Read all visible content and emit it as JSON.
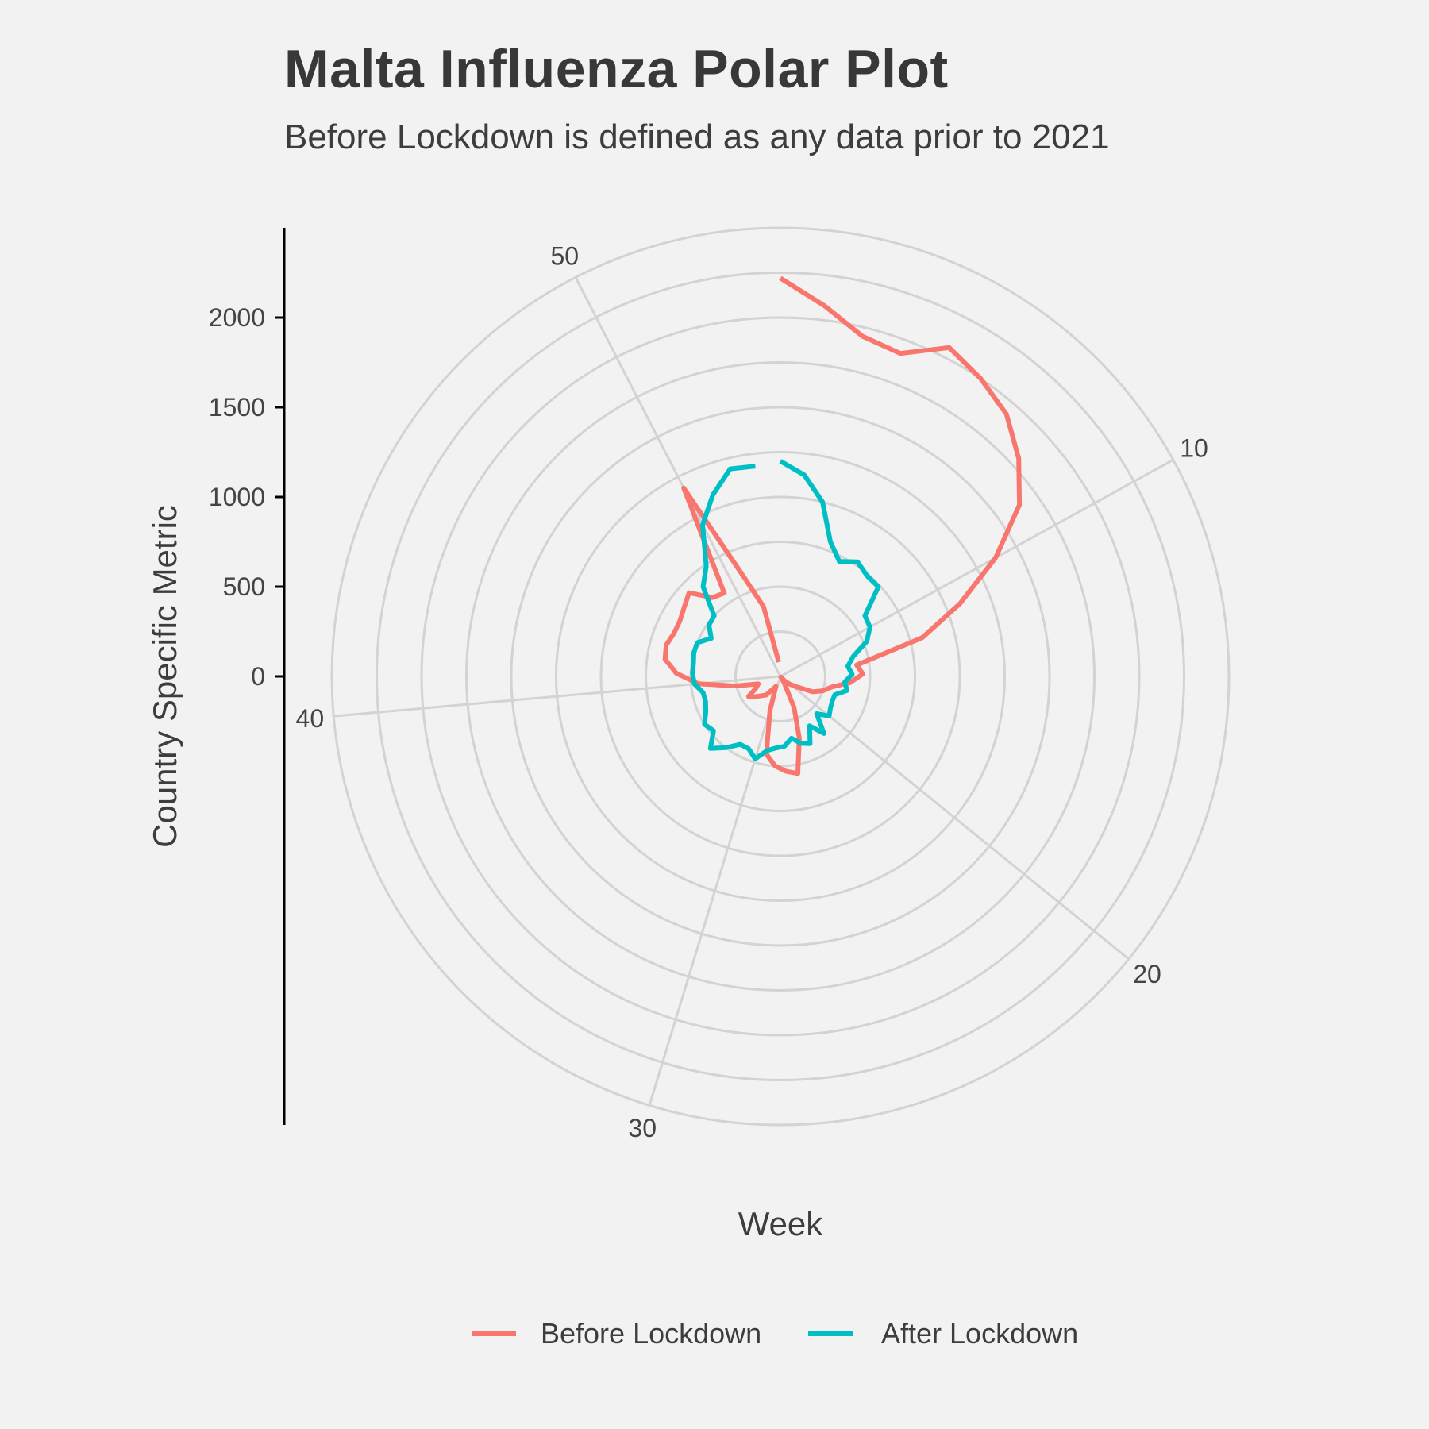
{
  "chart_data": {
    "type": "line",
    "coord": "polar",
    "title": "Malta Influenza Polar Plot",
    "subtitle": "Before Lockdown is defined as any data prior to 2021",
    "xlabel": "Week",
    "ylabel": "Country Specific Metric",
    "x_range": [
      1,
      53
    ],
    "ylim": [
      0,
      2500
    ],
    "x_ticks": [
      10,
      20,
      30,
      40,
      50
    ],
    "y_ticks": [
      0,
      500,
      1000,
      1500,
      2000
    ],
    "grid": true,
    "legend_position": "bottom",
    "series": [
      {
        "name": "Before Lockdown",
        "color": "#F8766D",
        "x": [
          1,
          2,
          3,
          4,
          5,
          6,
          7,
          8,
          9,
          10,
          11,
          12,
          13,
          14,
          15,
          16,
          17,
          18,
          19,
          20,
          21,
          22,
          23,
          24,
          25,
          26,
          27,
          28,
          29,
          30,
          31,
          32,
          33,
          34,
          35,
          36,
          37,
          38,
          39,
          40,
          41,
          42,
          43,
          44,
          45,
          46,
          47,
          48,
          49,
          50,
          51,
          52,
          53
        ],
        "y": [
          2220,
          2080,
          1950,
          1920,
          2060,
          2000,
          1930,
          1800,
          1640,
          1370,
          1080,
          820,
          430,
          460,
          390,
          290,
          250,
          200,
          110,
          70,
          40,
          5,
          40,
          190,
          360,
          550,
          530,
          500,
          440,
          200,
          60,
          80,
          130,
          150,
          180,
          210,
          150,
          130,
          260,
          460,
          580,
          650,
          660,
          640,
          640,
          660,
          690,
          580,
          560,
          1180,
          600,
          400,
          80
        ]
      },
      {
        "name": "After Lockdown",
        "color": "#00BFC4",
        "x": [
          1,
          2,
          3,
          4,
          5,
          6,
          7,
          8,
          9,
          10,
          11,
          12,
          13,
          14,
          15,
          16,
          17,
          18,
          19,
          20,
          21,
          22,
          23,
          24,
          25,
          26,
          27,
          28,
          29,
          30,
          31,
          32,
          33,
          34,
          35,
          36,
          37,
          38,
          39,
          40,
          41,
          42,
          43,
          44,
          45,
          46,
          47,
          48,
          49,
          50,
          51,
          52,
          53
        ],
        "y": [
          1200,
          1130,
          1000,
          800,
          720,
          770,
          740,
          740,
          580,
          570,
          520,
          420,
          380,
          400,
          360,
          380,
          320,
          320,
          330,
          350,
          290,
          400,
          320,
          410,
          390,
          350,
          390,
          400,
          420,
          480,
          440,
          440,
          500,
          560,
          480,
          500,
          460,
          440,
          440,
          480,
          490,
          490,
          500,
          500,
          440,
          490,
          500,
          660,
          740,
          950,
          1080,
          1190,
          1180
        ]
      }
    ]
  }
}
